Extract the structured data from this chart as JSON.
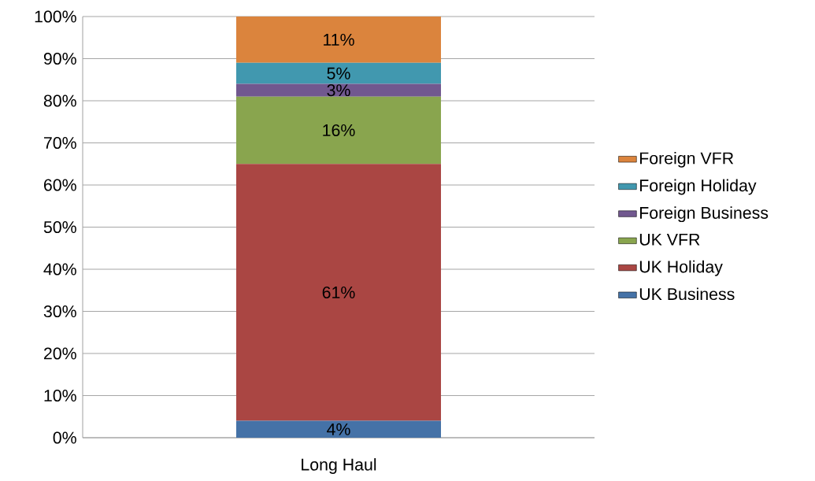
{
  "chart_data": {
    "type": "bar",
    "stacked": true,
    "categories": [
      "Long Haul"
    ],
    "series": [
      {
        "name": "UK Business",
        "color": "#4572a7",
        "values": [
          4
        ],
        "value_labels": [
          "4%"
        ]
      },
      {
        "name": "UK Holiday",
        "color": "#aa4643",
        "values": [
          61
        ],
        "value_labels": [
          "61%"
        ]
      },
      {
        "name": "UK VFR",
        "color": "#89a54e",
        "values": [
          16
        ],
        "value_labels": [
          "16%"
        ]
      },
      {
        "name": "Foreign Business",
        "color": "#71588f",
        "values": [
          3
        ],
        "value_labels": [
          "3%"
        ]
      },
      {
        "name": "Foreign Holiday",
        "color": "#4198af",
        "values": [
          5
        ],
        "value_labels": [
          "5%"
        ]
      },
      {
        "name": "Foreign VFR",
        "color": "#db843d",
        "values": [
          11
        ],
        "value_labels": [
          "11%"
        ]
      }
    ],
    "ylim": [
      0,
      100
    ],
    "yticks": [
      {
        "value": 0,
        "label": "0%"
      },
      {
        "value": 10,
        "label": "10%"
      },
      {
        "value": 20,
        "label": "20%"
      },
      {
        "value": 30,
        "label": "30%"
      },
      {
        "value": 40,
        "label": "40%"
      },
      {
        "value": 50,
        "label": "50%"
      },
      {
        "value": 60,
        "label": "60%"
      },
      {
        "value": 70,
        "label": "70%"
      },
      {
        "value": 80,
        "label": "80%"
      },
      {
        "value": 90,
        "label": "90%"
      },
      {
        "value": 100,
        "label": "100%"
      }
    ],
    "grid": "y",
    "legend": "right"
  }
}
